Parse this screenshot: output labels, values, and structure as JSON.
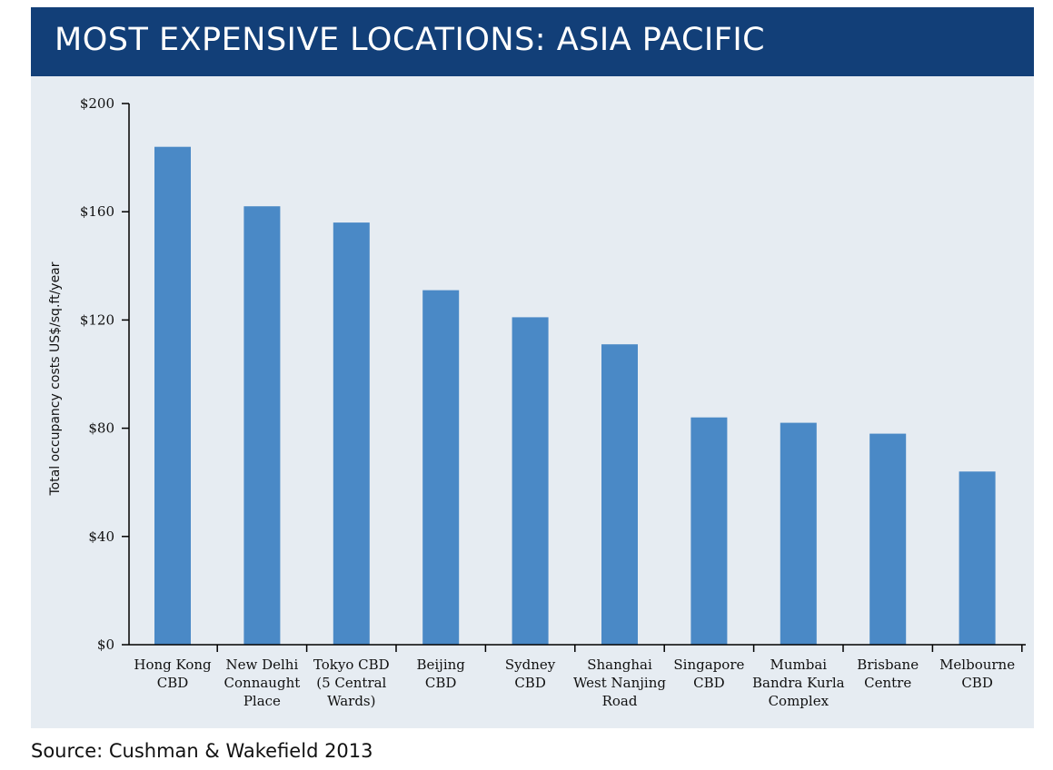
{
  "header": {
    "title": "MOST EXPENSIVE LOCATIONS: ASIA PACIFIC"
  },
  "footer": {
    "source": "Source: Cushman & Wakefield 2013"
  },
  "colors": {
    "banner": "#123f78",
    "panel_background": "#e6ecf2",
    "bar": "#4a89c6"
  },
  "chart_data": {
    "type": "bar",
    "title": "",
    "xlabel": "",
    "ylabel": "Total occupancy costs US$/sq.ft/year",
    "ylim": [
      0,
      200
    ],
    "yticks": [
      0,
      40,
      80,
      120,
      160,
      200
    ],
    "ytick_labels": [
      "$0",
      "$40",
      "$80",
      "$120",
      "$160",
      "$200"
    ],
    "grid": false,
    "categories": [
      [
        "Hong Kong",
        "CBD"
      ],
      [
        "New Delhi",
        "Connaught",
        "Place"
      ],
      [
        "Tokyo CBD",
        "(5 Central",
        "Wards)"
      ],
      [
        "Beijing",
        "CBD"
      ],
      [
        "Sydney",
        "CBD"
      ],
      [
        "Shanghai",
        "West Nanjing",
        "Road"
      ],
      [
        "Singapore",
        "CBD"
      ],
      [
        "Mumbai",
        "Bandra Kurla",
        "Complex"
      ],
      [
        "Brisbane",
        "Centre"
      ],
      [
        "Melbourne",
        "CBD"
      ]
    ],
    "values": [
      184,
      162,
      156,
      131,
      121,
      111,
      84,
      82,
      78,
      64
    ]
  }
}
